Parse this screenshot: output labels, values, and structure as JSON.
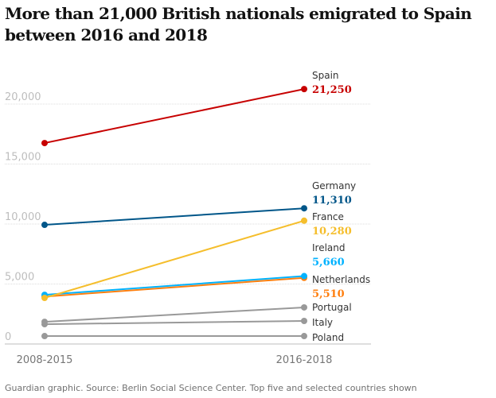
{
  "chart_data": {
    "type": "line",
    "title": "More than 21,000 British nationals emigrated to Spain between 2016 and 2018",
    "xlabel": "",
    "ylabel": "",
    "categories": [
      "2008-2015",
      "2016-2018"
    ],
    "ylim": [
      0,
      21250
    ],
    "yticks": [
      0,
      5000,
      10000,
      15000,
      20000
    ],
    "ytick_labels": [
      "0",
      "5,000",
      "10,000",
      "15,000",
      "20,000"
    ],
    "grid": true,
    "series": [
      {
        "name": "Spain",
        "color": "#c70000",
        "values": [
          16750,
          21250
        ],
        "end_label": "21,250",
        "show_value": true
      },
      {
        "name": "Germany",
        "color": "#005689",
        "values": [
          9930,
          11310
        ],
        "end_label": "11,310",
        "show_value": true
      },
      {
        "name": "France",
        "color": "#f5be2c",
        "values": [
          3840,
          10280
        ],
        "end_label": "10,280",
        "show_value": true
      },
      {
        "name": "Ireland",
        "color": "#00b2ff",
        "values": [
          4100,
          5660
        ],
        "end_label": "5,660",
        "show_value": true
      },
      {
        "name": "Netherlands",
        "color": "#ff7f0f",
        "values": [
          3950,
          5510
        ],
        "end_label": "5,510",
        "show_value": true
      },
      {
        "name": "Portugal",
        "color": "#999999",
        "values": [
          1850,
          3050
        ],
        "end_label": "",
        "show_value": false
      },
      {
        "name": "Italy",
        "color": "#999999",
        "values": [
          1650,
          1920
        ],
        "end_label": "",
        "show_value": false
      },
      {
        "name": "Poland",
        "color": "#999999",
        "values": [
          660,
          660
        ],
        "end_label": "",
        "show_value": false
      }
    ]
  },
  "footer": "Guardian graphic. Source: Berlin Social Science Center. Top five and selected countries shown"
}
